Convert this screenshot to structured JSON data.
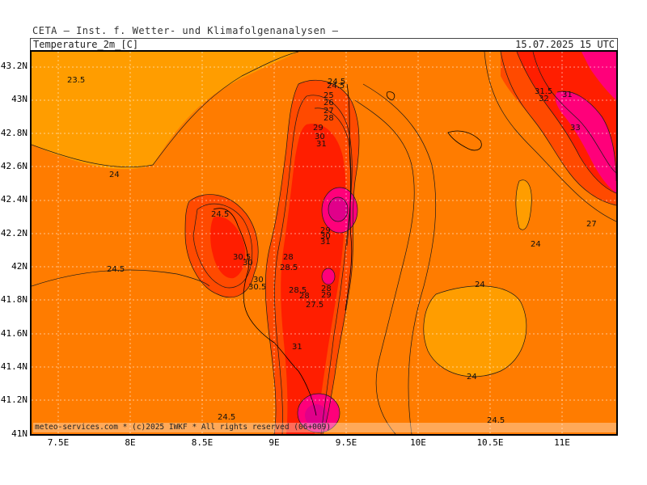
{
  "header": {
    "title": "CETA — Inst. f. Wetter- und Klimafolgenanalysen —"
  },
  "subheader": {
    "variable": "Temperature_2m_[C]",
    "valid_time": "15.07.2025 15 UTC"
  },
  "axes": {
    "lat_labels": [
      "43.2N",
      "43N",
      "42.8N",
      "42.6N",
      "42.4N",
      "42.2N",
      "42N",
      "41.8N",
      "41.6N",
      "41.4N",
      "41.2N",
      "41N"
    ],
    "lon_labels": [
      "7.5E",
      "8E",
      "8.5E",
      "9E",
      "9.5E",
      "10E",
      "10.5E",
      "11E"
    ]
  },
  "copyright": "meteo-services.com * (c)2025 IWKF * All rights reserved (06+009)",
  "contour_labels": [
    "23.5",
    "24",
    "24.5",
    "24",
    "24.5",
    "24.5",
    "24",
    "24",
    "24.5",
    "27",
    "31.5",
    "32",
    "31",
    "33",
    "24.5",
    "25",
    "26",
    "27",
    "28",
    "29",
    "30",
    "31",
    "29",
    "30",
    "31",
    "30.5",
    "30",
    "28",
    "28.5",
    "30",
    "30.5",
    "28.5",
    "28",
    "27.5",
    "28",
    "29",
    "31",
    "24.5"
  ],
  "colors": {
    "light_orange": "#ff9d00",
    "orange": "#ff7c00",
    "red_orange": "#ff4a00",
    "red": "#ff1e00",
    "magenta": "#ff007a",
    "hot_magenta": "#e0008a"
  }
}
